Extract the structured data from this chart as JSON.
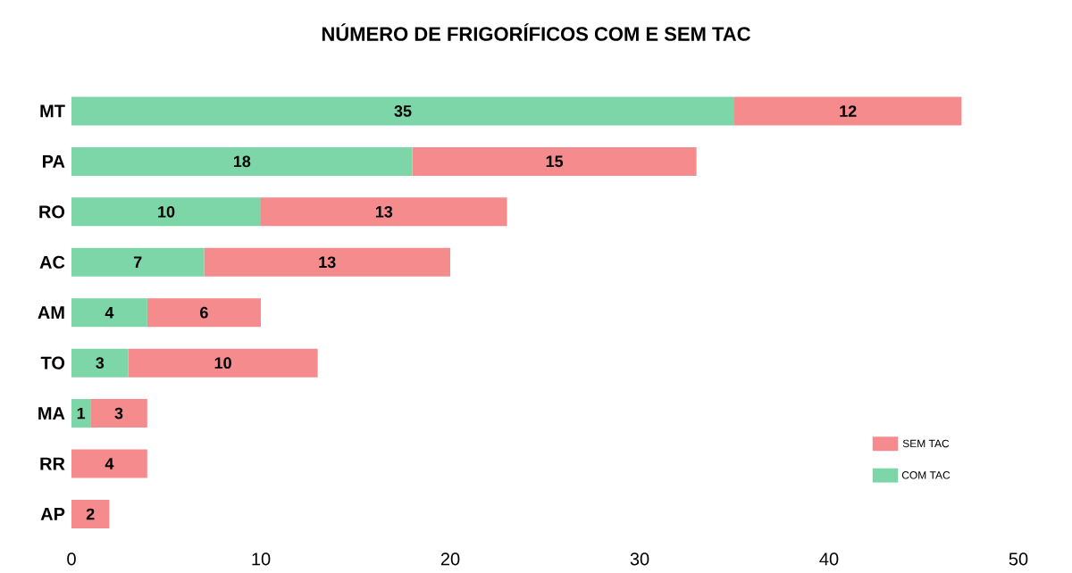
{
  "chart_data": {
    "type": "bar",
    "title": "NÚMERO DE FRIGORÍFICOS COM E SEM TAC",
    "orientation": "horizontal",
    "stacked": true,
    "categories": [
      "MT",
      "PA",
      "RO",
      "AC",
      "AM",
      "TO",
      "MA",
      "RR",
      "AP"
    ],
    "series": [
      {
        "name": "COM TAC",
        "color": "#7dd6a7",
        "values": [
          35,
          18,
          10,
          7,
          4,
          3,
          1,
          0,
          0
        ],
        "value_labels": [
          "35",
          "18",
          "10",
          "7",
          "4",
          "3",
          "1",
          null,
          null
        ]
      },
      {
        "name": "SEM TAC",
        "color": "#f58b8c",
        "values": [
          12,
          15,
          13,
          13,
          6,
          10,
          3,
          4,
          2
        ],
        "value_labels": [
          "12",
          "15",
          "13",
          "13",
          "6",
          "10",
          "3",
          "4",
          "2"
        ]
      }
    ],
    "xlim": [
      0,
      50
    ],
    "xticks": [
      0,
      10,
      20,
      30,
      40,
      50
    ],
    "legend": "bottom right"
  }
}
